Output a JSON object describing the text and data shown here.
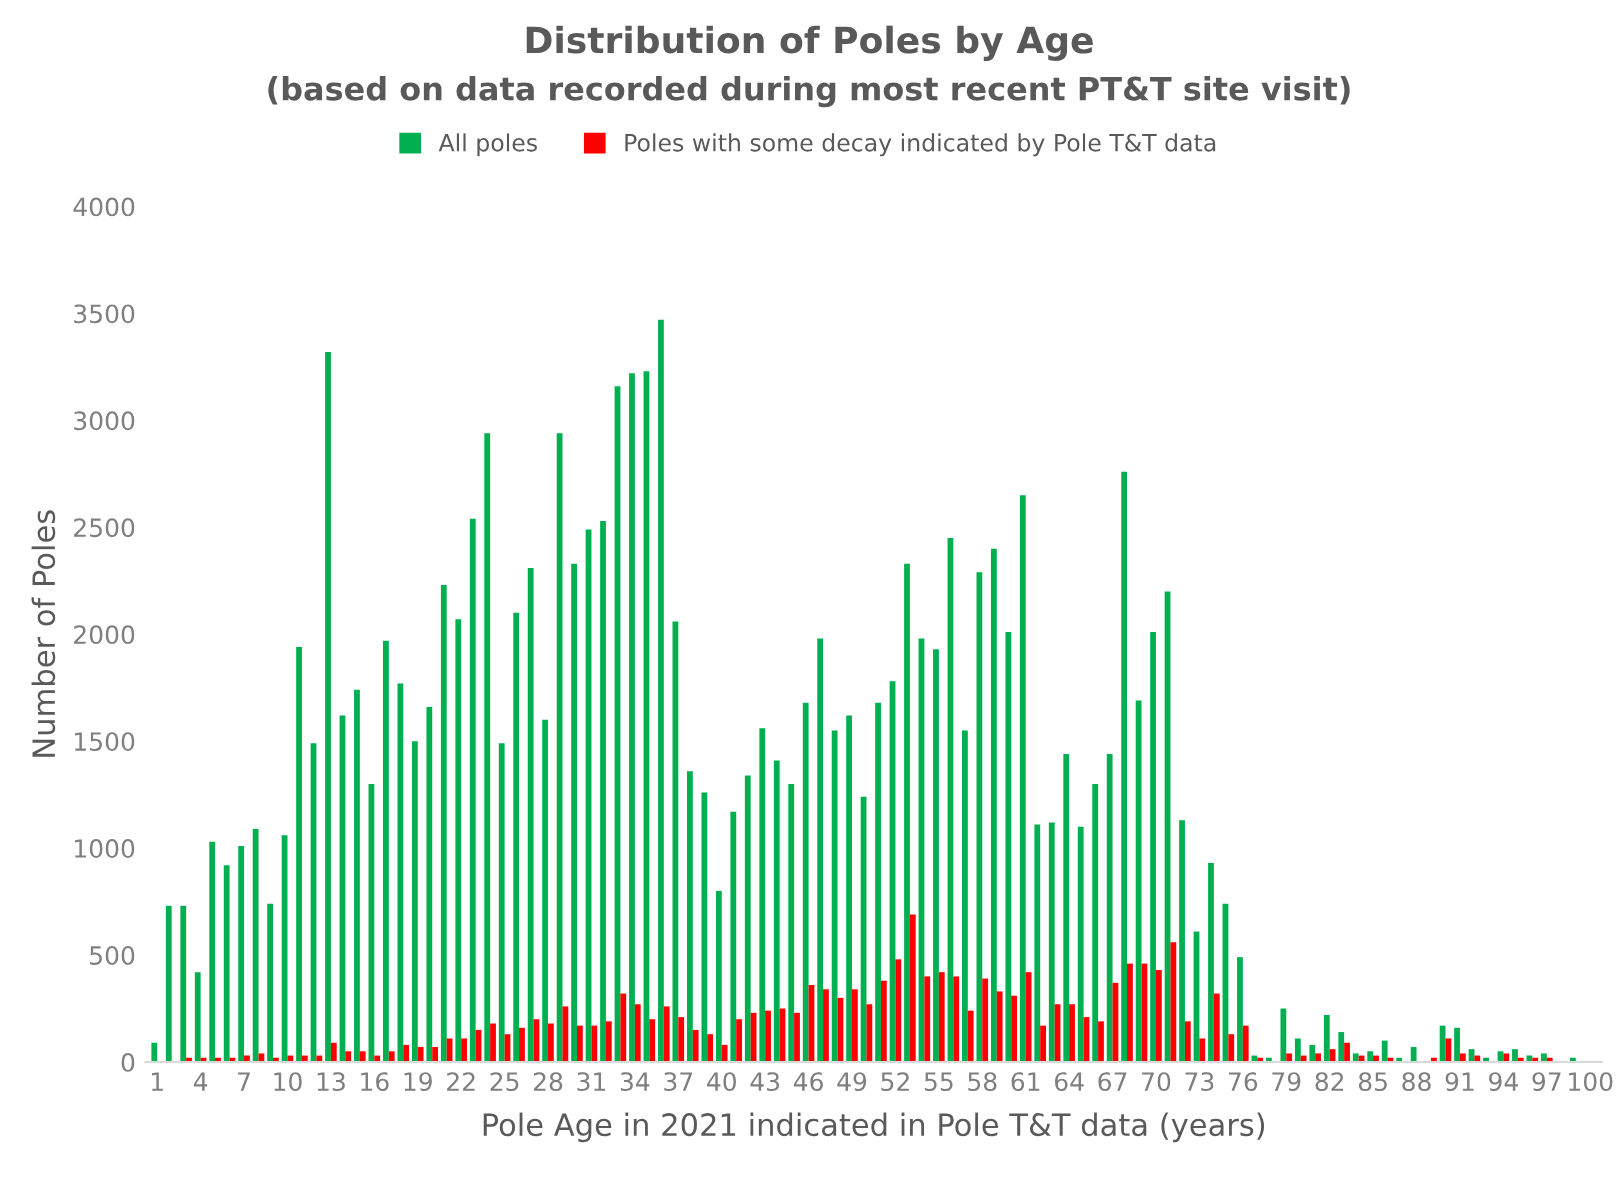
{
  "chart_data": {
    "type": "bar",
    "title": "Distribution of Poles by Age",
    "subtitle": "(based on data recorded during most recent PT&T site visit)",
    "xlabel": "Pole Age in 2021 indicated in Pole T&T data (years)",
    "ylabel": "Number of Poles",
    "categories": [
      "1",
      null,
      null,
      "4",
      null,
      null,
      "7",
      null,
      null,
      "10",
      null,
      null,
      "13",
      null,
      null,
      "16",
      null,
      null,
      "19",
      null,
      null,
      "22",
      null,
      null,
      "25",
      null,
      null,
      "28",
      null,
      null,
      "31",
      null,
      null,
      "34",
      null,
      null,
      "37",
      null,
      null,
      "40",
      null,
      null,
      "43",
      null,
      null,
      "46",
      null,
      null,
      "49",
      null,
      null,
      "52",
      null,
      null,
      "55",
      null,
      null,
      "58",
      null,
      null,
      "61",
      null,
      null,
      "64",
      null,
      null,
      "67",
      null,
      null,
      "70",
      null,
      null,
      "73",
      null,
      null,
      "76",
      null,
      null,
      "79",
      null,
      null,
      "82",
      null,
      null,
      "85",
      null,
      null,
      "88",
      null,
      null,
      "91",
      null,
      null,
      "94",
      null,
      null,
      "97",
      null,
      null,
      "100"
    ],
    "series": [
      {
        "name": "All poles",
        "color": "#00b050",
        "values": [
          90,
          730,
          730,
          420,
          1030,
          920,
          1010,
          1090,
          740,
          1060,
          1940,
          1490,
          3320,
          1620,
          1740,
          1300,
          1970,
          1770,
          1500,
          1660,
          2230,
          2070,
          2540,
          2940,
          1490,
          2100,
          2310,
          1600,
          2940,
          2330,
          2490,
          2530,
          3160,
          3220,
          3230,
          3470,
          2060,
          1360,
          1260,
          800,
          1170,
          1340,
          1560,
          1410,
          1300,
          1680,
          1980,
          1550,
          1620,
          1240,
          1680,
          1780,
          2330,
          1980,
          1930,
          2450,
          1550,
          2290,
          2400,
          2010,
          2650,
          1110,
          1120,
          1440,
          1100,
          1300,
          1440,
          2760,
          1690,
          2010,
          2200,
          1130,
          610,
          930,
          740,
          490,
          30,
          20,
          250,
          110,
          80,
          220,
          140,
          40,
          50,
          100,
          20,
          70,
          0,
          170,
          160,
          60,
          20,
          50,
          60,
          30,
          40,
          0,
          20,
          0
        ]
      },
      {
        "name": "Poles with some decay indicated by Pole T&T data",
        "color": "#ff0000",
        "values": [
          0,
          0,
          20,
          20,
          20,
          20,
          30,
          40,
          20,
          30,
          30,
          30,
          90,
          50,
          50,
          30,
          50,
          80,
          70,
          70,
          110,
          110,
          150,
          180,
          130,
          160,
          200,
          180,
          260,
          170,
          170,
          190,
          320,
          270,
          200,
          260,
          210,
          150,
          130,
          80,
          200,
          230,
          240,
          250,
          230,
          360,
          340,
          300,
          340,
          270,
          380,
          480,
          690,
          400,
          420,
          400,
          240,
          390,
          330,
          310,
          420,
          170,
          270,
          270,
          210,
          190,
          370,
          460,
          460,
          430,
          560,
          190,
          110,
          320,
          130,
          170,
          20,
          0,
          40,
          30,
          40,
          60,
          90,
          30,
          30,
          20,
          0,
          0,
          20,
          110,
          40,
          30,
          0,
          40,
          20,
          20,
          20,
          0,
          0,
          0
        ]
      }
    ],
    "ylim": [
      0,
      4000
    ],
    "yticks": [
      0,
      500,
      1000,
      1500,
      2000,
      2500,
      3000,
      3500,
      4000
    ],
    "grid": false,
    "legend": "top"
  }
}
